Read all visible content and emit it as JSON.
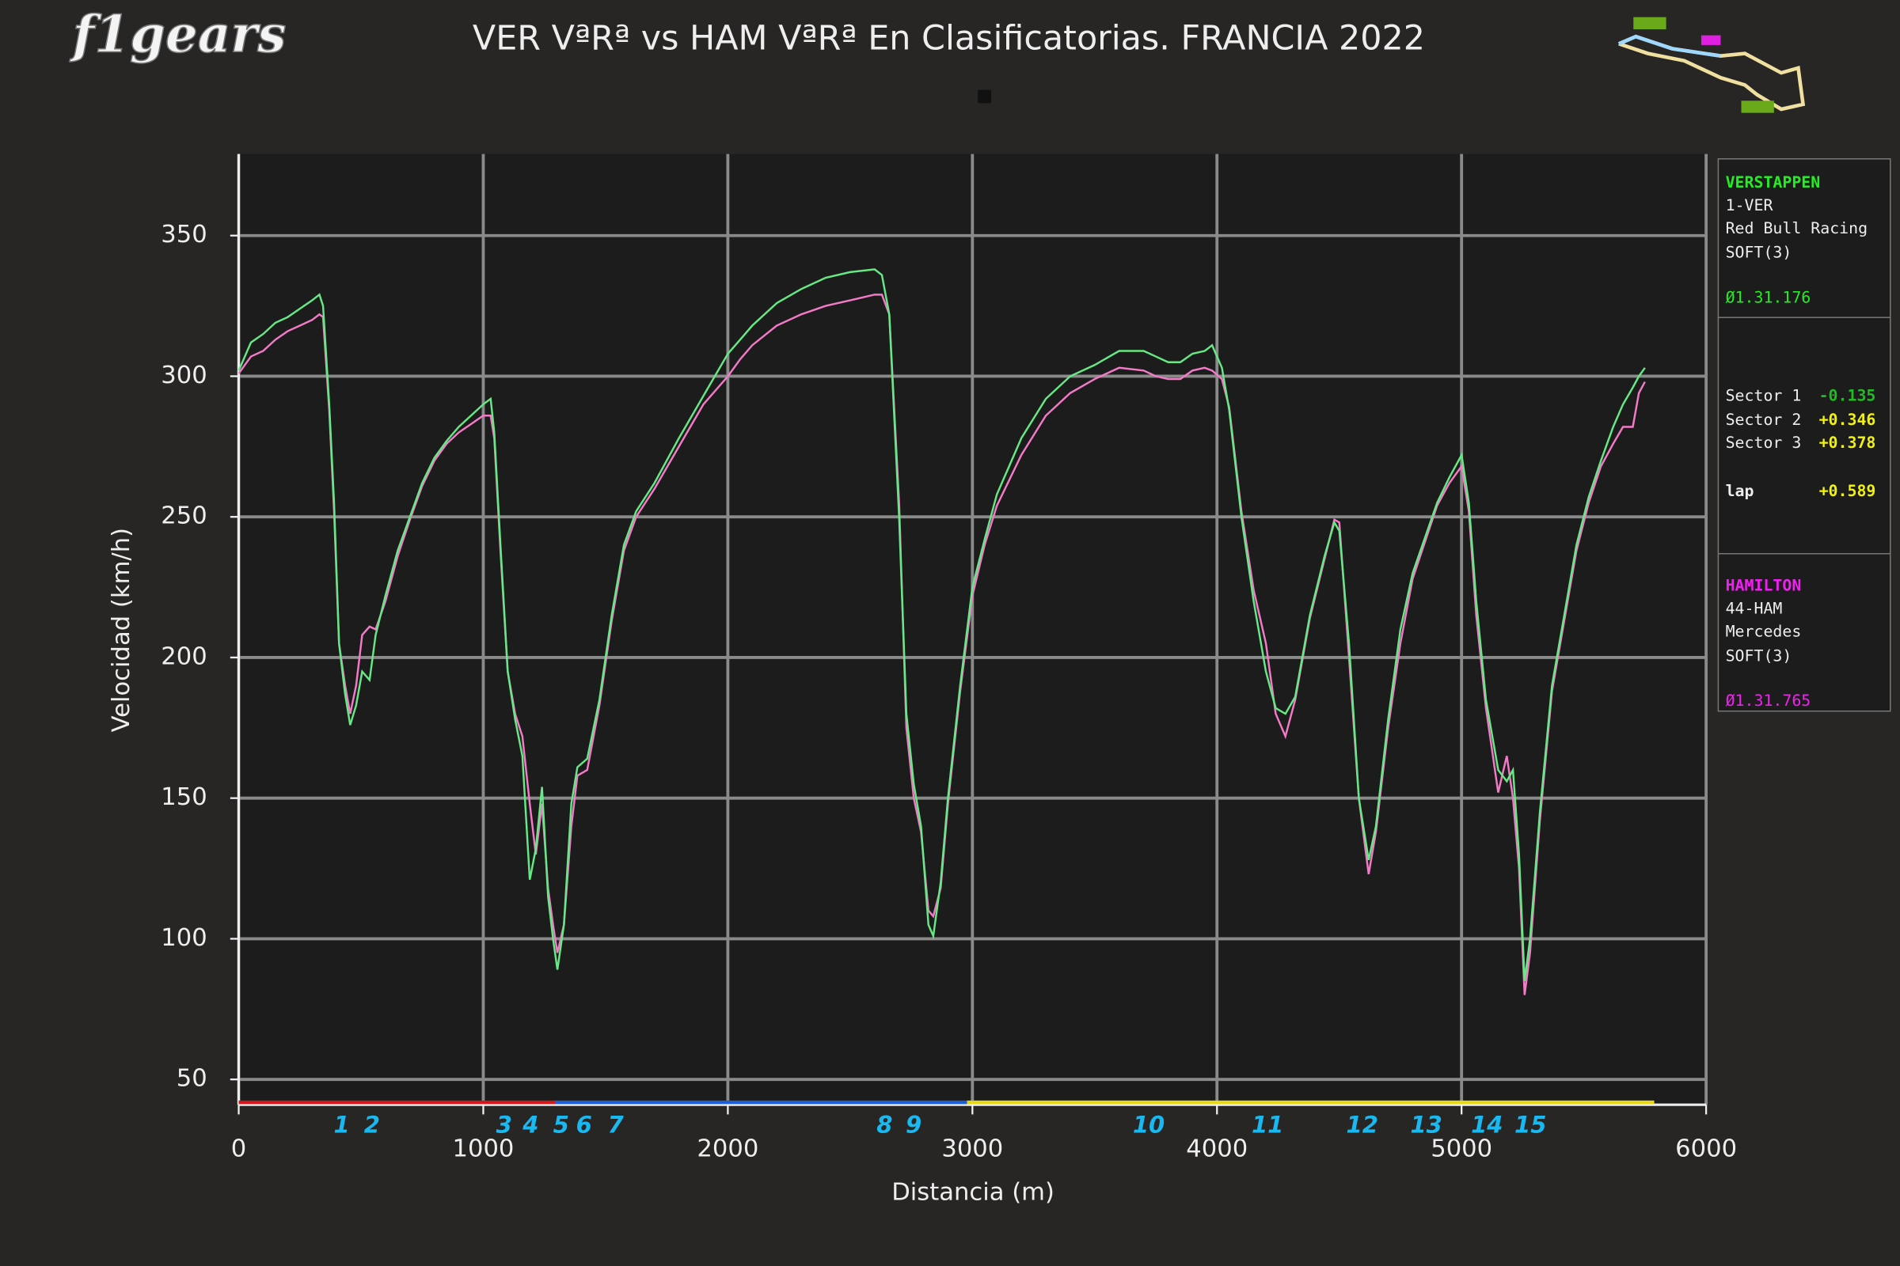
{
  "chart_data": {
    "type": "line",
    "logo": "f1gears",
    "title": "VER VªRª vs HAM VªRª En Clasificatorias. FRANCIA 2022",
    "xlabel": "Distancia (m)",
    "ylabel": "Velocidad (km/h)",
    "xlim": [
      0,
      6000
    ],
    "ylim": [
      41,
      379
    ],
    "xticks": [
      0,
      1000,
      2000,
      3000,
      4000,
      5000,
      6000
    ],
    "yticks": [
      50,
      100,
      150,
      200,
      250,
      300,
      350
    ],
    "grid": true,
    "x": [
      0,
      50,
      100,
      150,
      200,
      250,
      300,
      330,
      345,
      370,
      390,
      410,
      435,
      456,
      480,
      505,
      535,
      560,
      600,
      650,
      700,
      750,
      800,
      850,
      900,
      950,
      1000,
      1030,
      1045,
      1070,
      1100,
      1130,
      1160,
      1190,
      1215,
      1240,
      1265,
      1285,
      1303,
      1330,
      1360,
      1385,
      1425,
      1475,
      1525,
      1575,
      1625,
      1700,
      1800,
      1900,
      2000,
      2050,
      2100,
      2200,
      2300,
      2400,
      2500,
      2600,
      2630,
      2660,
      2700,
      2730,
      2760,
      2790,
      2820,
      2840,
      2870,
      2900,
      2950,
      3000,
      3050,
      3100,
      3200,
      3300,
      3400,
      3500,
      3600,
      3700,
      3750,
      3800,
      3850,
      3900,
      3950,
      3980,
      4020,
      4050,
      4100,
      4150,
      4200,
      4240,
      4280,
      4320,
      4380,
      4440,
      4480,
      4500,
      4540,
      4580,
      4620,
      4650,
      4700,
      4750,
      4800,
      4900,
      4950,
      5000,
      5030,
      5060,
      5100,
      5150,
      5185,
      5210,
      5235,
      5258,
      5280,
      5320,
      5370,
      5420,
      5470,
      5520,
      5570,
      5620,
      5660,
      5700,
      5725,
      5750
    ],
    "series": [
      {
        "name": "VERSTAPPEN",
        "color": "#66e884",
        "values": [
          302,
          312,
          315,
          319,
          321,
          324,
          327,
          329,
          325,
          290,
          255,
          205,
          187,
          176,
          183,
          195,
          192,
          208,
          222,
          238,
          250,
          262,
          271,
          277,
          282,
          286,
          290,
          292,
          280,
          240,
          195,
          178,
          165,
          121,
          132,
          154,
          115,
          100,
          89,
          105,
          148,
          161,
          164,
          185,
          215,
          240,
          252,
          262,
          278,
          293,
          308,
          313,
          318,
          326,
          331,
          335,
          337,
          338,
          336,
          322,
          250,
          180,
          155,
          140,
          105,
          101,
          120,
          150,
          190,
          225,
          242,
          258,
          278,
          292,
          300,
          304,
          309,
          309,
          307,
          305,
          305,
          308,
          309,
          311,
          303,
          288,
          250,
          220,
          195,
          182,
          180,
          186,
          215,
          236,
          248,
          245,
          205,
          150,
          128,
          140,
          178,
          210,
          230,
          255,
          264,
          272,
          255,
          220,
          185,
          160,
          156,
          160,
          130,
          85,
          100,
          145,
          190,
          215,
          240,
          257,
          270,
          282,
          290,
          296,
          300,
          303
        ]
      },
      {
        "name": "HAMILTON",
        "color": "#f27ac6",
        "values": [
          301,
          307,
          309,
          313,
          316,
          318,
          320,
          322,
          321,
          288,
          252,
          205,
          190,
          180,
          190,
          208,
          211,
          210,
          220,
          236,
          249,
          261,
          270,
          276,
          280,
          283,
          286,
          286,
          278,
          238,
          195,
          180,
          172,
          148,
          130,
          148,
          118,
          105,
          95,
          105,
          140,
          158,
          160,
          183,
          213,
          238,
          250,
          260,
          275,
          290,
          300,
          306,
          311,
          318,
          322,
          325,
          327,
          329,
          329,
          322,
          255,
          175,
          150,
          138,
          110,
          108,
          118,
          148,
          188,
          222,
          240,
          254,
          272,
          286,
          294,
          299,
          303,
          302,
          300,
          299,
          299,
          302,
          303,
          302,
          299,
          289,
          252,
          224,
          205,
          180,
          172,
          185,
          214,
          235,
          249,
          248,
          200,
          150,
          123,
          138,
          175,
          205,
          228,
          254,
          262,
          268,
          252,
          215,
          182,
          152,
          165,
          150,
          125,
          80,
          95,
          142,
          188,
          213,
          238,
          255,
          268,
          276,
          282,
          282,
          294,
          298
        ]
      }
    ],
    "corners": [
      {
        "label": "1",
        "x": 421
      },
      {
        "label": "2",
        "x": 545
      },
      {
        "label": "3",
        "x": 1085
      },
      {
        "label": "4",
        "x": 1194
      },
      {
        "label": "5",
        "x": 1318
      },
      {
        "label": "6",
        "x": 1412
      },
      {
        "label": "7",
        "x": 1541
      },
      {
        "label": "8",
        "x": 2641
      },
      {
        "label": "9",
        "x": 2760
      },
      {
        "label": "10",
        "x": 3721
      },
      {
        "label": "11",
        "x": 4207
      },
      {
        "label": "12",
        "x": 4594
      },
      {
        "label": "13",
        "x": 4856
      },
      {
        "label": "14",
        "x": 5104
      },
      {
        "label": "15",
        "x": 5282
      }
    ],
    "sectors": [
      {
        "start": 0,
        "end": 1293,
        "color": "#d0191f"
      },
      {
        "start": 1293,
        "end": 2978,
        "color": "#1f5fd6"
      },
      {
        "start": 2978,
        "end": 5788,
        "color": "#e8d81a"
      }
    ],
    "panel": {
      "driver1": {
        "name": "VERSTAPPEN",
        "code": "1-VER",
        "team": "Red Bull Racing",
        "tyre": "SOFT(3)",
        "time": "Ø1.31.176",
        "color": "#22ee22"
      },
      "deltas": [
        {
          "label": "Sector 1",
          "value": "-0.135",
          "color": "#22bb22"
        },
        {
          "label": "Sector 2",
          "value": "+0.346",
          "color": "#f2f20a"
        },
        {
          "label": "Sector 3",
          "value": "+0.378",
          "color": "#f2f20a"
        },
        {
          "label": "lap",
          "value": "+0.589",
          "color": "#f2f20a"
        }
      ],
      "driver2": {
        "name": "HAMILTON",
        "code": "44-HAM",
        "team": "Mercedes",
        "tyre": "SOFT(3)",
        "time": "Ø1.31.765",
        "color": "#ee22ee"
      }
    }
  }
}
